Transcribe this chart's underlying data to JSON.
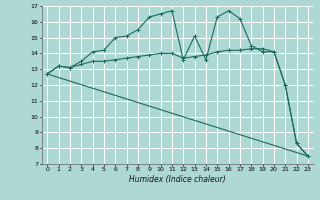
{
  "title": "",
  "xlabel": "Humidex (Indice chaleur)",
  "xlim": [
    -0.5,
    23.5
  ],
  "ylim": [
    7,
    17
  ],
  "yticks": [
    7,
    8,
    9,
    10,
    11,
    12,
    13,
    14,
    15,
    16,
    17
  ],
  "xticks": [
    0,
    1,
    2,
    3,
    4,
    5,
    6,
    7,
    8,
    9,
    10,
    11,
    12,
    13,
    14,
    15,
    16,
    17,
    18,
    19,
    20,
    21,
    22,
    23
  ],
  "bg_color": "#aed8d4",
  "grid_color": "#ffffff",
  "line_color": "#1a6b5a",
  "series1_x": [
    0,
    1,
    2,
    3,
    4,
    5,
    6,
    7,
    8,
    9,
    10,
    11,
    12,
    13,
    14,
    15,
    16,
    17,
    18,
    19,
    20,
    21,
    22,
    23
  ],
  "series1_y": [
    12.7,
    13.2,
    13.1,
    13.5,
    14.1,
    14.2,
    15.0,
    15.1,
    15.5,
    16.3,
    16.5,
    16.7,
    13.6,
    15.1,
    13.6,
    16.3,
    16.7,
    16.2,
    14.5,
    14.1,
    14.1,
    12.0,
    8.3,
    7.5
  ],
  "series2_x": [
    0,
    1,
    2,
    3,
    4,
    5,
    6,
    7,
    8,
    9,
    10,
    11,
    12,
    13,
    14,
    15,
    16,
    17,
    18,
    19,
    20,
    21,
    22,
    23
  ],
  "series2_y": [
    12.7,
    13.2,
    13.1,
    13.3,
    13.5,
    13.5,
    13.6,
    13.7,
    13.8,
    13.9,
    14.0,
    14.0,
    13.7,
    13.8,
    13.9,
    14.1,
    14.2,
    14.2,
    14.3,
    14.3,
    14.1,
    12.0,
    8.3,
    7.5
  ],
  "series3_x": [
    0,
    23
  ],
  "series3_y": [
    12.7,
    7.5
  ]
}
